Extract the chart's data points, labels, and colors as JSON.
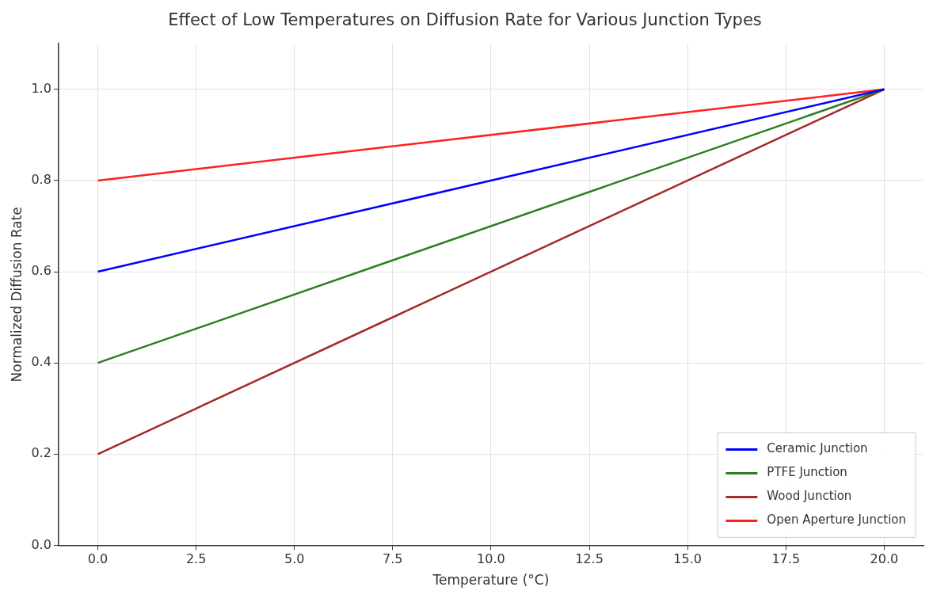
{
  "chart_data": {
    "type": "line",
    "title": "Effect of Low Temperatures on Diffusion Rate for Various Junction Types",
    "xlabel": "Temperature (°C)",
    "ylabel": "Normalized Diffusion Rate",
    "x": [
      0,
      20
    ],
    "series": [
      {
        "name": "Ceramic Junction",
        "color": "#0000ff",
        "values": [
          0.6,
          1.0
        ]
      },
      {
        "name": "PTFE Junction",
        "color": "#2e7d22",
        "values": [
          0.4,
          1.0
        ]
      },
      {
        "name": "Wood Junction",
        "color": "#a52a2a",
        "values": [
          0.2,
          1.0
        ]
      },
      {
        "name": "Open Aperture Junction",
        "color": "#ff2020",
        "values": [
          0.8,
          1.0
        ]
      }
    ],
    "xlim": [
      -1,
      21
    ],
    "ylim": [
      0,
      1.1
    ],
    "xticks": [
      {
        "value": 0,
        "label": "0.0"
      },
      {
        "value": 2.5,
        "label": "2.5"
      },
      {
        "value": 5,
        "label": "5.0"
      },
      {
        "value": 7.5,
        "label": "7.5"
      },
      {
        "value": 10,
        "label": "10.0"
      },
      {
        "value": 12.5,
        "label": "12.5"
      },
      {
        "value": 15,
        "label": "15.0"
      },
      {
        "value": 17.5,
        "label": "17.5"
      },
      {
        "value": 20,
        "label": "20.0"
      }
    ],
    "yticks": [
      {
        "value": 0,
        "label": "0.0"
      },
      {
        "value": 0.2,
        "label": "0.2"
      },
      {
        "value": 0.4,
        "label": "0.4"
      },
      {
        "value": 0.6,
        "label": "0.6"
      },
      {
        "value": 0.8,
        "label": "0.8"
      },
      {
        "value": 1,
        "label": "1.0"
      }
    ],
    "grid": true,
    "legend": "bottom right",
    "marker": "none",
    "line_style": "solid"
  }
}
